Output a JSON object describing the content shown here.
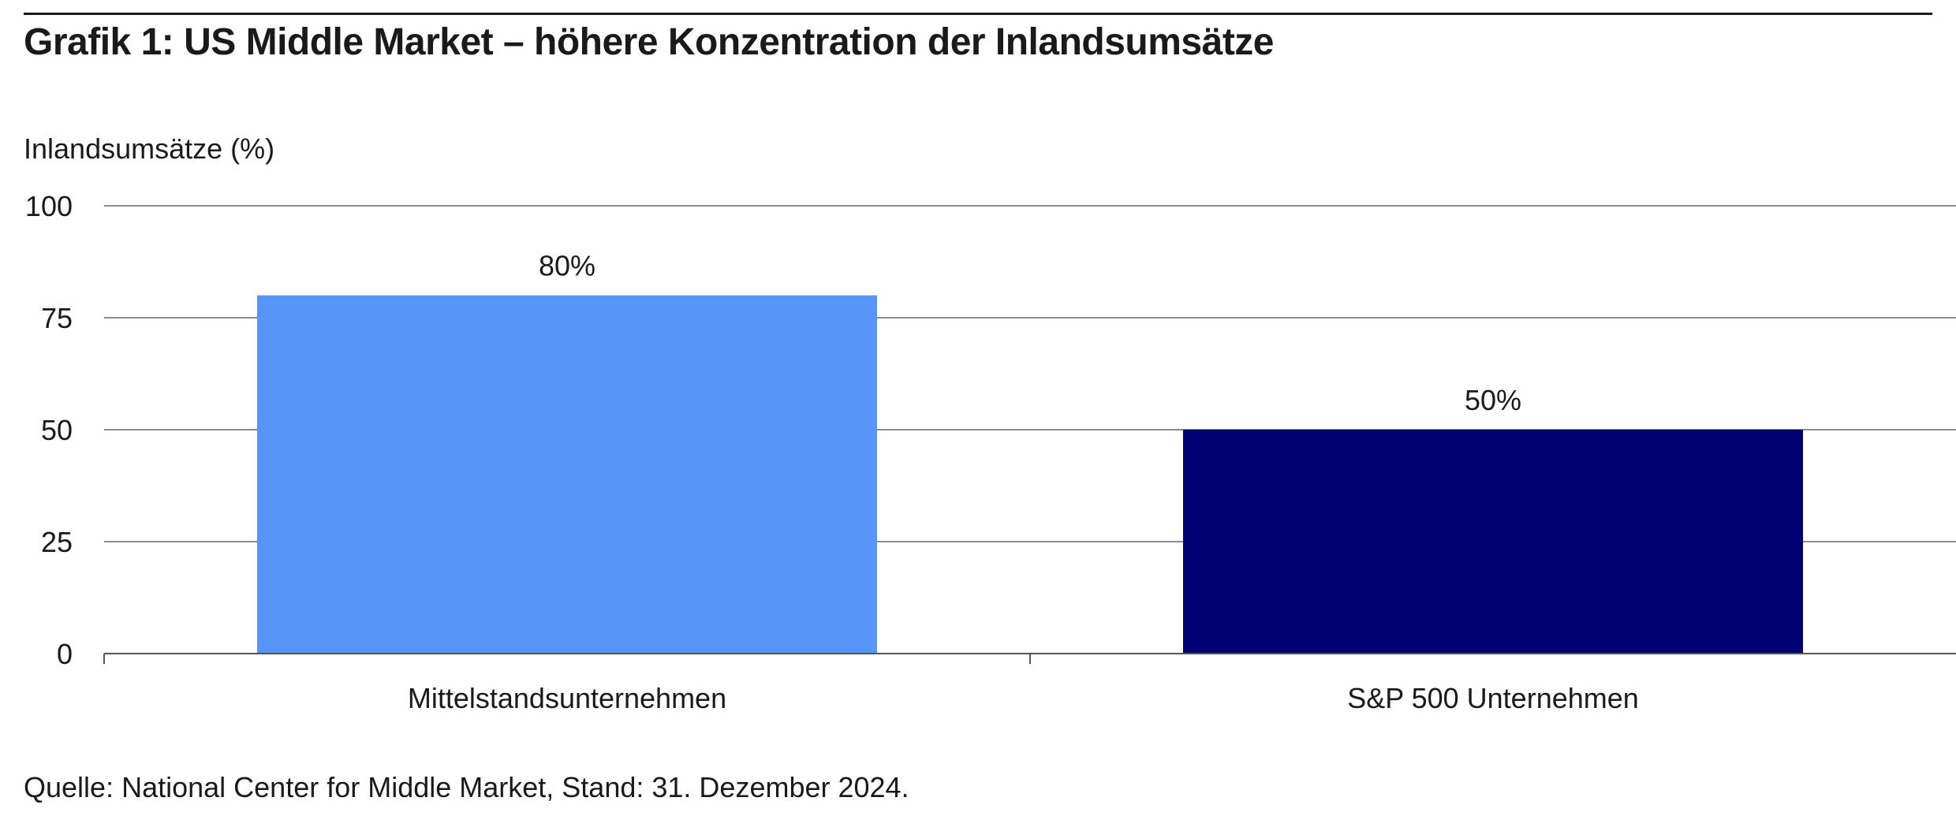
{
  "title": "Grafik 1: US Middle Market – höhere Konzentration der Inlandsumsätze",
  "source": "Quelle: National Center for Middle Market, Stand: 31. Dezember 2024.",
  "chart_data": {
    "type": "bar",
    "ylabel": "Inlandsumsätze (%)",
    "xlabel": "",
    "ylim": [
      0,
      100
    ],
    "yticks": [
      0,
      25,
      50,
      75,
      100
    ],
    "grid": true,
    "categories": [
      "Mittelstandsunternehmen",
      "S&P 500 Unternehmen"
    ],
    "values": [
      80,
      50
    ],
    "data_labels": [
      "80%",
      "50%"
    ],
    "colors": [
      "#5796F8",
      "#000073"
    ],
    "gridline_color": "#8c8c8c"
  }
}
